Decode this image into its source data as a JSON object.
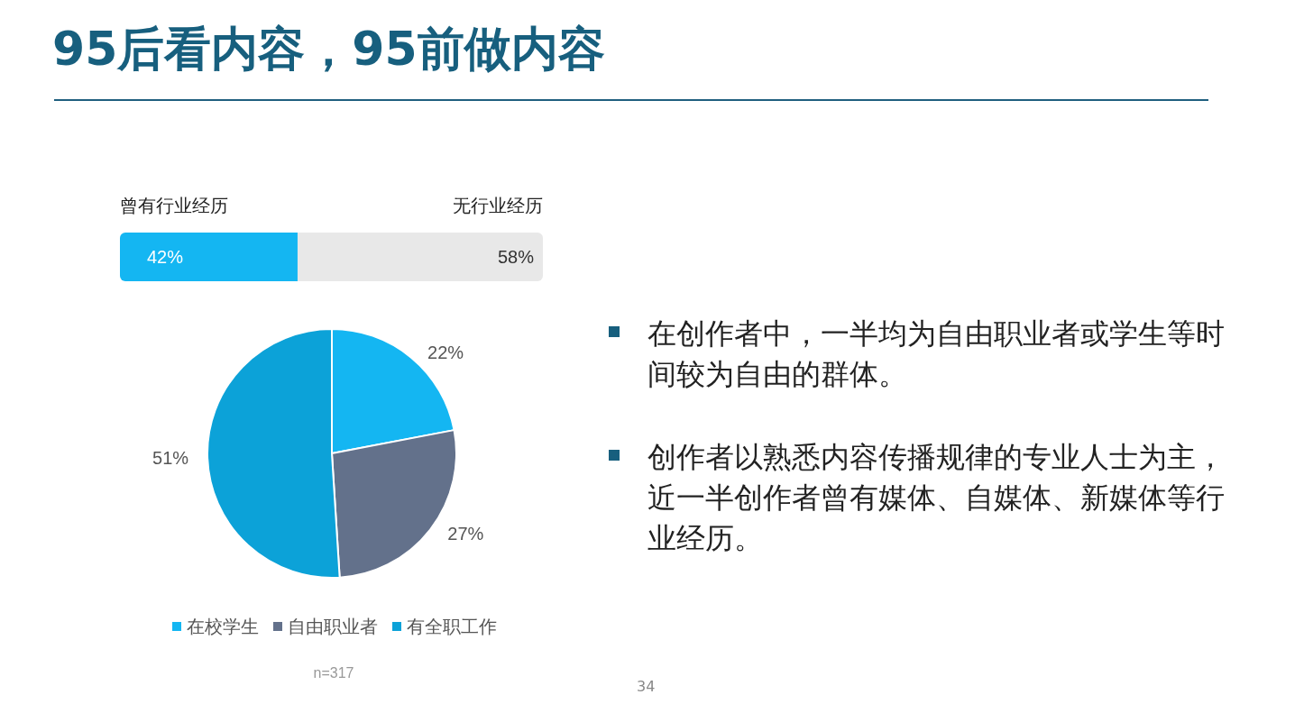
{
  "chart_data": [
    {
      "type": "other",
      "title": "95后看内容，95前做内容",
      "annotations": [
        "在创作者中，一半均为自由职业者或学生等时间较为自由的群体。",
        "创作者以熟悉内容传播规律的专业人士为主，近一半创作者曾有媒体、自媒体、新媒体等行业经历。",
        "34"
      ]
    },
    {
      "type": "bar",
      "orientation": "horizontal",
      "stacked": true,
      "categories": [
        null
      ],
      "xlim": [
        0,
        100
      ],
      "tick_labels": false,
      "series": [
        {
          "name": "曾有行业经历",
          "color": "#14b6f2",
          "values": [
            42
          ],
          "value_labels": [
            "42%"
          ]
        },
        {
          "name": "无行业经历",
          "color": "#e8e8e8",
          "values": [
            58
          ],
          "value_labels": [
            "58%"
          ]
        }
      ]
    },
    {
      "type": "pie",
      "categories": [
        "在校学生",
        "自由职业者",
        "有全职工作"
      ],
      "values": [
        22,
        27,
        51
      ],
      "colors": [
        "#14b6f2",
        "#63718b",
        "#0ca2d8"
      ],
      "value_labels": [
        "22%",
        "27%",
        "51%"
      ],
      "legend": "bottom",
      "annotations": [
        "n=317"
      ]
    }
  ]
}
